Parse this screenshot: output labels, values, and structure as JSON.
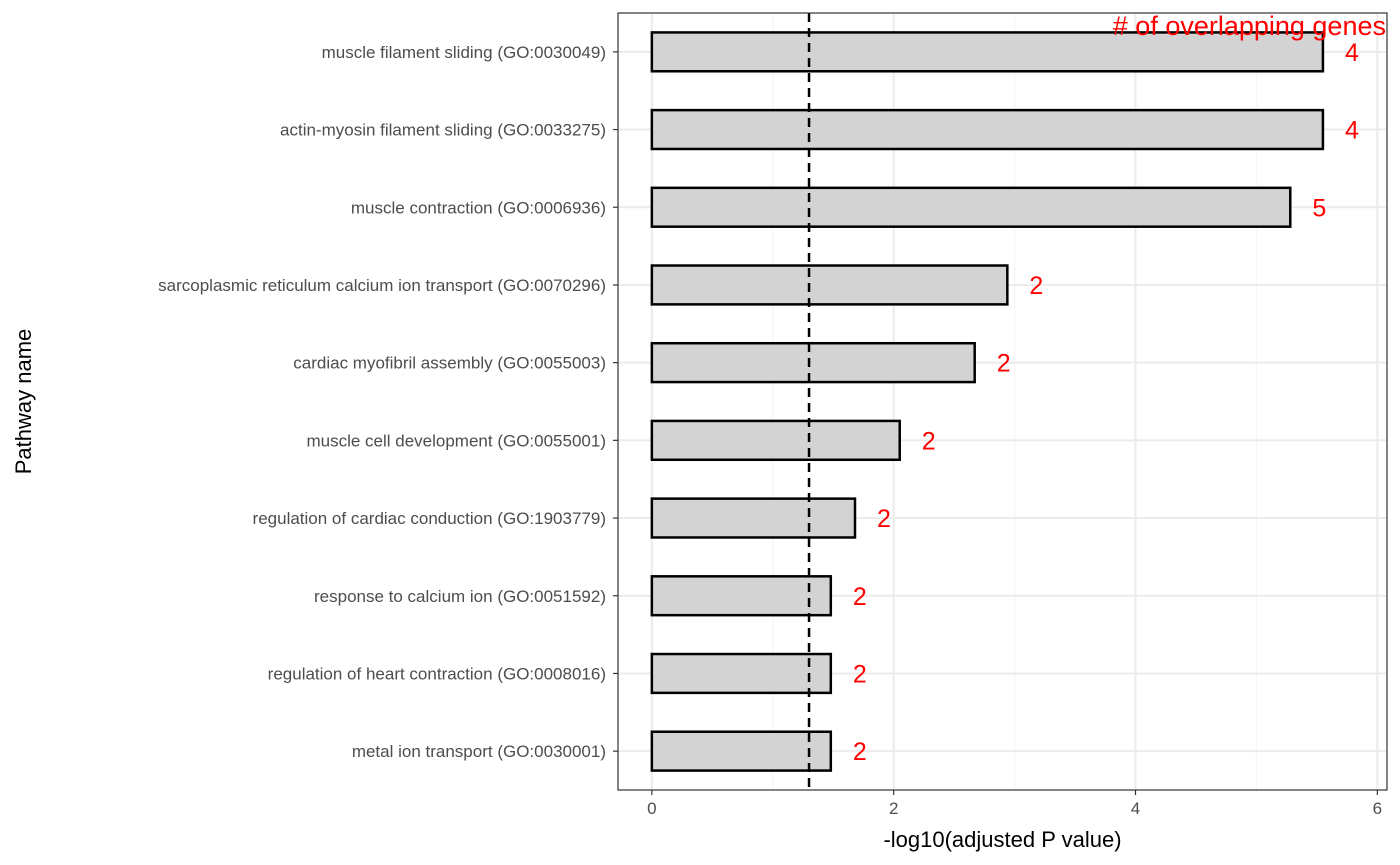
{
  "chart_data": {
    "type": "bar",
    "orientation": "horizontal",
    "xlabel": "-log10(adjusted P value)",
    "ylabel": "Pathway name",
    "annotation": "# of overlapping genes",
    "xlim": [
      -0.28,
      6.08
    ],
    "xticks": [
      0,
      2,
      4,
      6
    ],
    "threshold_line": 1.3,
    "grid": true,
    "categories": [
      "muscle filament sliding (GO:0030049)",
      "actin-myosin filament sliding (GO:0033275)",
      "muscle contraction (GO:0006936)",
      "sarcoplasmic reticulum calcium ion transport (GO:0070296)",
      "cardiac myofibril assembly (GO:0055003)",
      "muscle cell development (GO:0055001)",
      "regulation of cardiac conduction (GO:1903779)",
      "response to calcium ion (GO:0051592)",
      "regulation of heart contraction (GO:0008016)",
      "metal ion transport (GO:0030001)"
    ],
    "values": [
      5.55,
      5.55,
      5.28,
      2.94,
      2.67,
      2.05,
      1.68,
      1.48,
      1.48,
      1.48
    ],
    "counts": [
      4,
      4,
      5,
      2,
      2,
      2,
      2,
      2,
      2,
      2
    ],
    "colors": {
      "bar_fill": "#d3d3d3",
      "bar_stroke": "#000000",
      "count_text": "#ff0000",
      "grid_major": "#ebebeb",
      "grid_minor": "#f5f5f5",
      "panel_border": "#333333"
    }
  }
}
